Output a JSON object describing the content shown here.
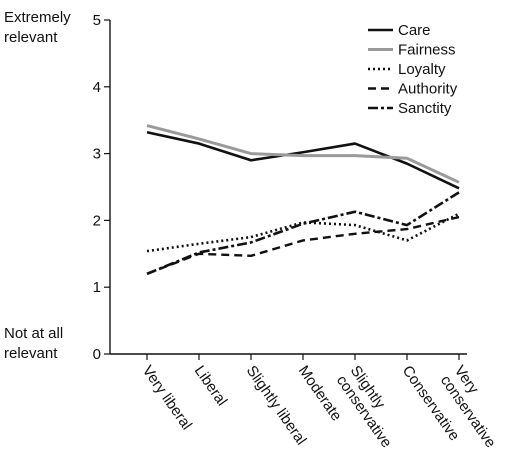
{
  "chart_data": {
    "type": "line",
    "categories": [
      "Very liberal",
      "Liberal",
      "Slightly liberal",
      "Moderate",
      "Slightly conservative",
      "Conservative",
      "Very conservative"
    ],
    "category_lines": [
      [
        "Very liberal"
      ],
      [
        "Liberal"
      ],
      [
        "Slightly liberal"
      ],
      [
        "Moderate"
      ],
      [
        "Slightly",
        "conservative"
      ],
      [
        "Conservative"
      ],
      [
        "Very",
        "conservative"
      ]
    ],
    "ylim": [
      0,
      5
    ],
    "yticks": [
      0,
      1,
      2,
      3,
      4,
      5
    ],
    "y_annotations": {
      "top": [
        "Extremely",
        "relevant"
      ],
      "bottom": [
        "Not at all",
        "relevant"
      ]
    },
    "legend_position": "top-right",
    "grid": false,
    "series": [
      {
        "name": "Care",
        "style": "solid",
        "color": "#111111",
        "values": [
          3.32,
          3.15,
          2.9,
          3.02,
          3.15,
          2.85,
          2.48
        ]
      },
      {
        "name": "Fairness",
        "style": "solid",
        "color": "#9a9a9a",
        "values": [
          3.42,
          3.22,
          3.0,
          2.97,
          2.97,
          2.93,
          2.57
        ]
      },
      {
        "name": "Loyalty",
        "style": "dotted",
        "color": "#111111",
        "values": [
          1.54,
          1.65,
          1.75,
          1.97,
          1.93,
          1.7,
          2.1
        ]
      },
      {
        "name": "Authority",
        "style": "dashed",
        "color": "#111111",
        "values": [
          1.2,
          1.5,
          1.47,
          1.7,
          1.8,
          1.87,
          2.05
        ]
      },
      {
        "name": "Sanctity",
        "style": "dashdot",
        "color": "#111111",
        "values": [
          1.2,
          1.52,
          1.67,
          1.95,
          2.13,
          1.93,
          2.42
        ]
      }
    ]
  }
}
